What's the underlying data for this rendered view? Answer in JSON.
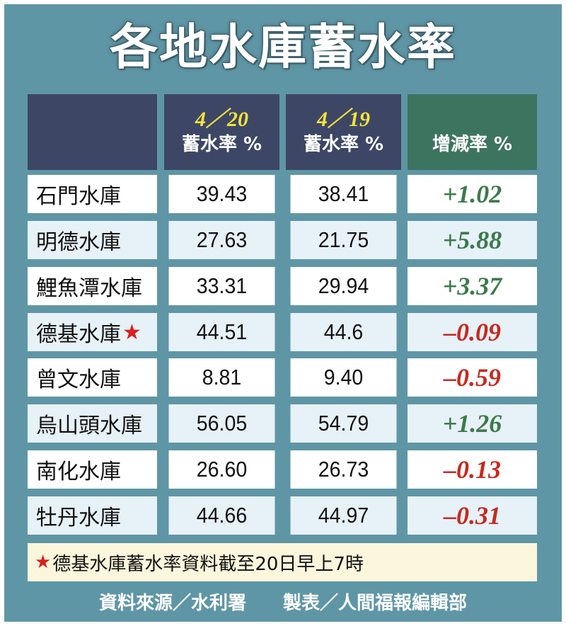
{
  "title": "各地水庫蓄水率",
  "headers": {
    "date1": "4／20",
    "date2": "4／19",
    "rate_label": "蓄水率 %",
    "delta_label": "增減率 %"
  },
  "rows": [
    {
      "name": "石門水庫",
      "star": "",
      "v1": "39.43",
      "v2": "38.41",
      "delta": "+1.02"
    },
    {
      "name": "明德水庫",
      "star": "",
      "v1": "27.63",
      "v2": "21.75",
      "delta": "+5.88"
    },
    {
      "name": "鯉魚潭水庫",
      "star": "",
      "v1": "33.31",
      "v2": "29.94",
      "delta": "+3.37"
    },
    {
      "name": "德基水庫",
      "star": "★",
      "v1": "44.51",
      "v2": "44.6",
      "delta": "–0.09"
    },
    {
      "name": "曾文水庫",
      "star": "",
      "v1": "8.81",
      "v2": "9.40",
      "delta": "–0.59"
    },
    {
      "name": "烏山頭水庫",
      "star": "",
      "v1": "56.05",
      "v2": "54.79",
      "delta": "+1.26"
    },
    {
      "name": "南化水庫",
      "star": "",
      "v1": "26.60",
      "v2": "26.73",
      "delta": "–0.13"
    },
    {
      "name": "牡丹水庫",
      "star": "",
      "v1": "44.66",
      "v2": "44.97",
      "delta": "–0.31"
    }
  ],
  "note": {
    "star": "★",
    "text": "德基水庫蓄水率資料截至20日早上7時"
  },
  "footer": "資料來源／水利署　　製表／人間福報編輯部",
  "colors": {
    "background": "#5f96a6",
    "header": "#3d4765",
    "header_delta": "#3c7460",
    "date": "#f5e23a",
    "positive": "#3c7a4c",
    "negative": "#c8291f",
    "note_bg": "#fcf6dc"
  }
}
